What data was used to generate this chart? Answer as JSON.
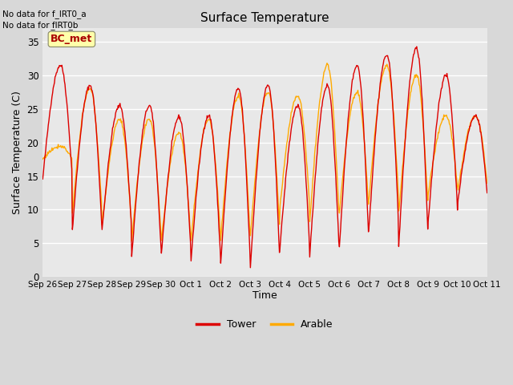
{
  "title": "Surface Temperature",
  "xlabel": "Time",
  "ylabel": "Surface Temperature (C)",
  "ylim": [
    0,
    37
  ],
  "yticks": [
    0,
    5,
    10,
    15,
    20,
    25,
    30,
    35
  ],
  "fig_bg": "#d8d8d8",
  "plot_bg": "#e8e8e8",
  "tower_color": "#dd0000",
  "arable_color": "#ffaa00",
  "line_width": 1.0,
  "annot1": "No data for f_IRT0_a",
  "annot2": "No data for f̲IRT0̲b",
  "bc_met_label": "BC_met",
  "bc_met_fg": "#aa0000",
  "bc_met_bg": "#ffffaa",
  "bc_met_edge": "#888866",
  "legend_labels": [
    "Tower",
    "Arable"
  ],
  "tick_labels": [
    "Sep 26",
    "Sep 27",
    "Sep 28",
    "Sep 29",
    "Sep 30",
    "Oct 1",
    "Oct 2",
    "Oct 3",
    "Oct 4",
    "Oct 5",
    "Oct 6",
    "Oct 7",
    "Oct 8",
    "Oct 9",
    "Oct 10",
    "Oct 11"
  ],
  "n_days": 15,
  "pts_per_day": 48,
  "tower_peaks": [
    31.5,
    28.5,
    25.5,
    25.5,
    23.8,
    24.0,
    28.0,
    28.5,
    25.5,
    28.5,
    31.5,
    33.0,
    34.0,
    30.0,
    24.0
  ],
  "tower_troughs": [
    14.5,
    7.0,
    7.0,
    3.0,
    3.5,
    2.5,
    2.0,
    1.5,
    4.5,
    3.0,
    4.5,
    7.5,
    4.5,
    8.5,
    11.5
  ],
  "arable_peaks": [
    19.5,
    28.0,
    23.5,
    23.5,
    21.5,
    23.5,
    27.0,
    27.5,
    27.0,
    31.5,
    27.5,
    31.5,
    30.0,
    24.0,
    24.0
  ],
  "arable_troughs": [
    17.5,
    9.5,
    7.5,
    5.5,
    5.5,
    5.5,
    5.5,
    6.0,
    10.5,
    8.0,
    9.5,
    11.5,
    9.5,
    12.5,
    13.0
  ]
}
